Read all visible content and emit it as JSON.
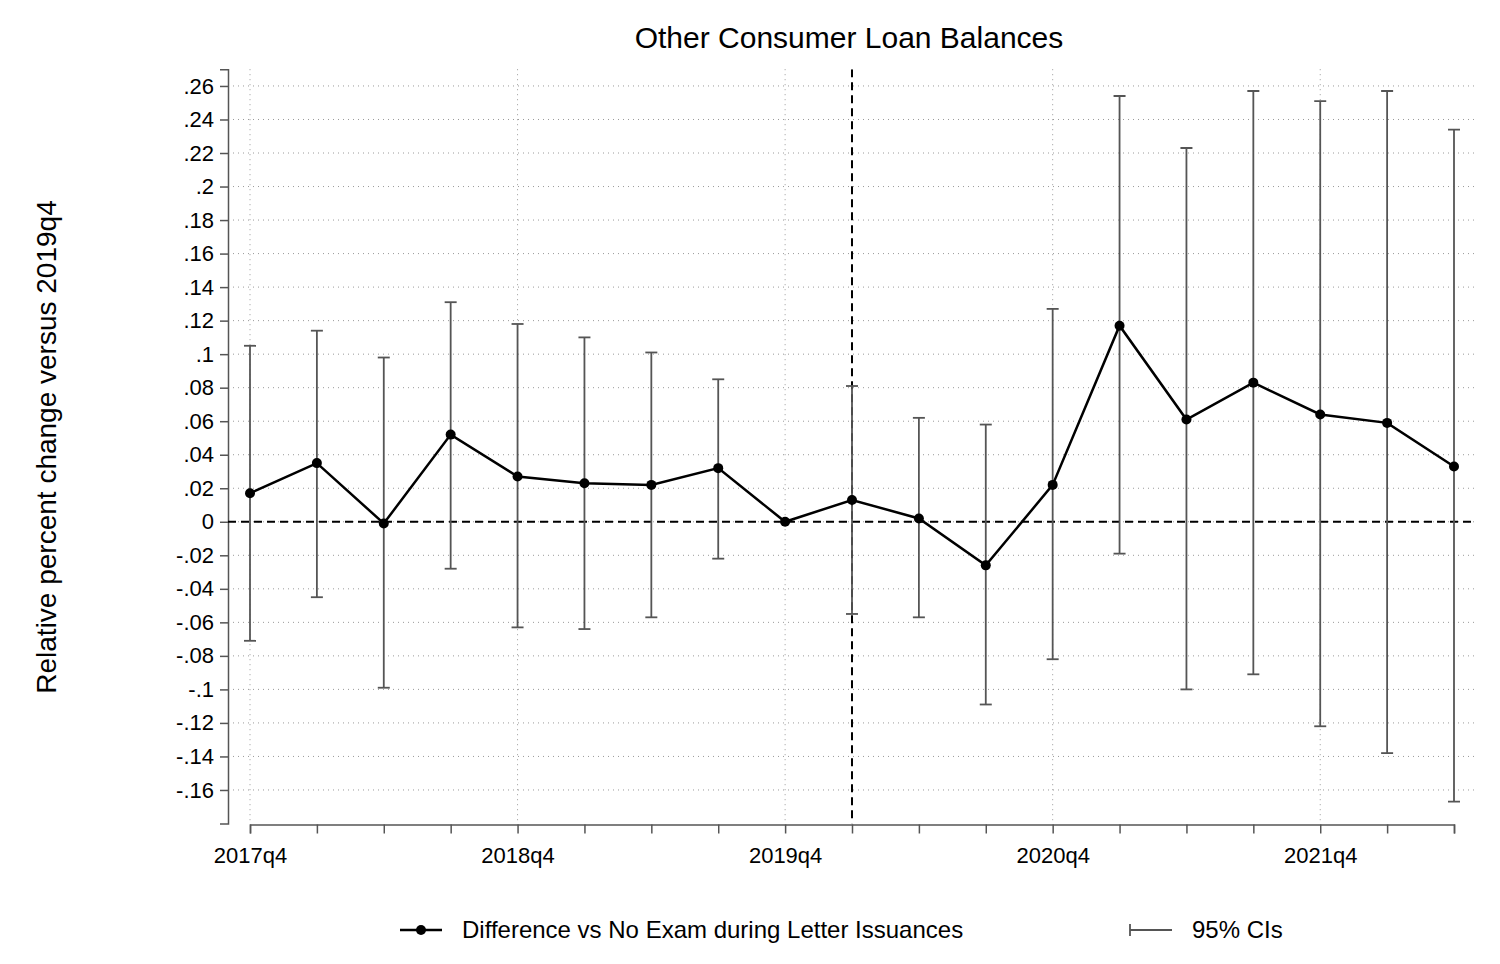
{
  "chart_data": {
    "type": "line",
    "title": "Other Consumer Loan Balances",
    "y_label": "Relative percent change versus 2019q4",
    "categories": [
      "2017q4",
      null,
      null,
      null,
      "2018q4",
      null,
      null,
      null,
      "2019q4",
      null,
      null,
      null,
      "2020q4",
      null,
      null,
      null,
      "2021q4",
      null,
      null
    ],
    "series": [
      {
        "name": "Difference vs No Exam during Letter Issuances",
        "color": "#000000",
        "marker": "circle",
        "line_style": "solid",
        "values": [
          0.017,
          0.035,
          -0.001,
          0.052,
          0.027,
          0.023,
          0.022,
          0.032,
          0,
          0.013,
          0.002,
          -0.026,
          0.022,
          0.117,
          0.061,
          0.083,
          0.064,
          0.059,
          0.033
        ],
        "ci_low": [
          -0.071,
          -0.045,
          -0.099,
          -0.028,
          -0.063,
          -0.064,
          -0.057,
          -0.022,
          null,
          -0.055,
          -0.057,
          -0.109,
          -0.082,
          -0.019,
          -0.1,
          -0.091,
          -0.122,
          -0.138,
          -0.167
        ],
        "ci_high": [
          0.105,
          0.114,
          0.098,
          0.131,
          0.118,
          0.11,
          0.101,
          0.085,
          null,
          0.081,
          0.062,
          0.058,
          0.127,
          0.254,
          0.223,
          0.257,
          0.251,
          0.257,
          0.234
        ],
        "ci_name": "95% CIs",
        "ci_color": "#555555"
      }
    ],
    "ylim": [
      -0.18,
      0.27
    ],
    "yticks": [
      {
        "value": 0.26,
        "label": ".26"
      },
      {
        "value": 0.24,
        "label": ".24"
      },
      {
        "value": 0.22,
        "label": ".22"
      },
      {
        "value": 0.2,
        "label": ".2"
      },
      {
        "value": 0.18,
        "label": ".18"
      },
      {
        "value": 0.16,
        "label": ".16"
      },
      {
        "value": 0.14,
        "label": ".14"
      },
      {
        "value": 0.12,
        "label": ".12"
      },
      {
        "value": 0.1,
        "label": ".1"
      },
      {
        "value": 0.08,
        "label": ".08"
      },
      {
        "value": 0.06,
        "label": ".06"
      },
      {
        "value": 0.04,
        "label": ".04"
      },
      {
        "value": 0.02,
        "label": ".02"
      },
      0,
      {
        "value": -0.02,
        "label": "-.02"
      },
      {
        "value": -0.04,
        "label": "-.04"
      },
      {
        "value": -0.06,
        "label": "-.06"
      },
      {
        "value": -0.08,
        "label": "-.08"
      },
      {
        "value": -0.1,
        "label": "-.1"
      },
      {
        "value": -0.12,
        "label": "-.12"
      },
      {
        "value": -0.14,
        "label": "-.14"
      },
      {
        "value": -0.16,
        "label": "-.16"
      }
    ],
    "hline": 0,
    "vline_position": 9,
    "grid": true,
    "legend": "bottom"
  }
}
